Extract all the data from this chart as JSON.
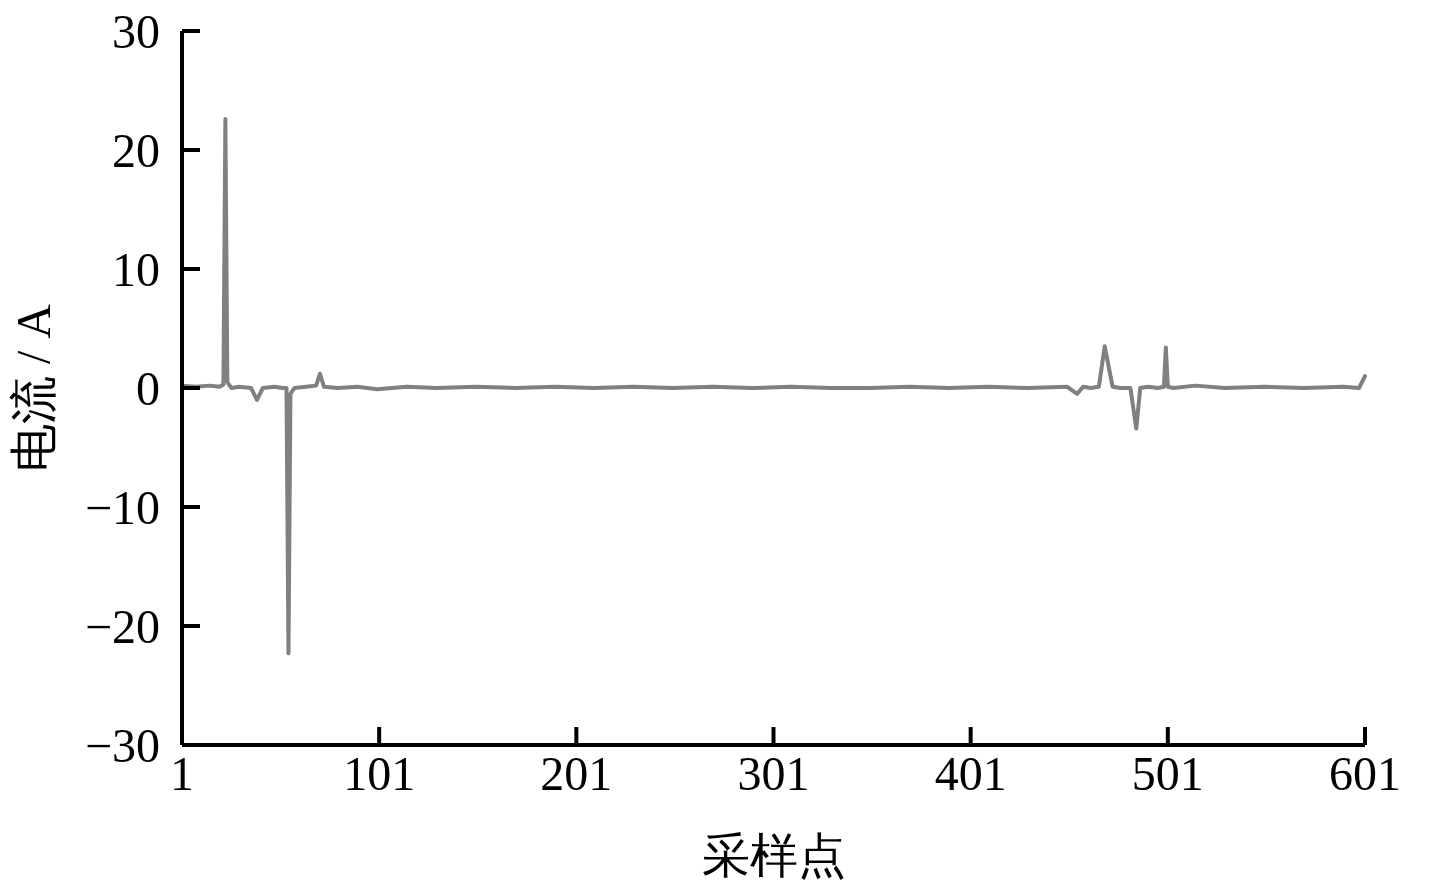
{
  "chart_data": {
    "type": "line",
    "xlabel": "采样点",
    "ylabel": "电流 / A",
    "xlim": [
      1,
      601
    ],
    "ylim": [
      -30,
      30
    ],
    "xticks": [
      1,
      101,
      201,
      301,
      401,
      501,
      601
    ],
    "yticks": [
      {
        "value": -30,
        "label": "−30"
      },
      {
        "value": -20,
        "label": "−20"
      },
      {
        "value": -10,
        "label": "−10"
      },
      0,
      10,
      20,
      30
    ],
    "x": [
      1,
      8,
      15,
      20,
      22,
      23,
      24,
      26,
      30,
      36,
      39,
      42,
      48,
      52,
      54,
      55,
      56,
      58,
      64,
      69,
      71,
      73,
      80,
      90,
      100,
      115,
      130,
      150,
      170,
      190,
      210,
      230,
      250,
      270,
      290,
      310,
      330,
      350,
      370,
      390,
      410,
      430,
      450,
      455,
      458,
      462,
      466,
      469,
      473,
      477,
      482,
      485,
      487,
      491,
      496,
      499,
      500,
      501,
      504,
      515,
      530,
      550,
      570,
      590,
      598,
      601
    ],
    "series": [
      {
        "color": "#808080",
        "values": [
          0.2,
          0.1,
          0.2,
          0.1,
          0.3,
          22.6,
          0.5,
          0,
          0.1,
          0,
          -1,
          0,
          0.1,
          0,
          0,
          -22.3,
          -0.5,
          0,
          0.1,
          0.2,
          1.2,
          0.1,
          0,
          0.1,
          -0.1,
          0.1,
          0,
          0.1,
          0,
          0.1,
          0,
          0.1,
          0,
          0.1,
          0,
          0.1,
          0,
          0,
          0.1,
          0,
          0.1,
          0,
          0.1,
          -0.5,
          0.1,
          0,
          0.1,
          3.5,
          0.1,
          0,
          0,
          -3.4,
          0,
          0.1,
          0,
          0.1,
          3.4,
          0.1,
          0,
          0.2,
          0,
          0.1,
          0,
          0.1,
          0,
          1.0
        ]
      }
    ]
  }
}
